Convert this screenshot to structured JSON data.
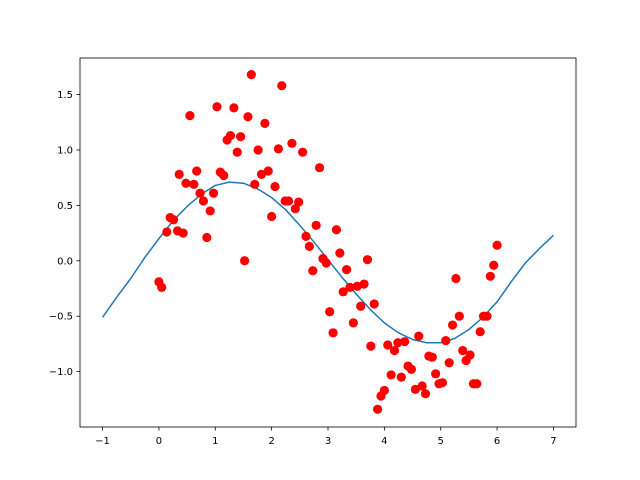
{
  "chart_data": {
    "type": "scatter",
    "title": "",
    "xlabel": "",
    "ylabel": "",
    "xlim": [
      -1.4,
      7.4
    ],
    "ylim": [
      -1.5,
      1.83
    ],
    "xticks": [
      -1,
      0,
      1,
      2,
      3,
      4,
      5,
      6,
      7
    ],
    "xtick_labels": [
      "−1",
      "0",
      "1",
      "2",
      "3",
      "4",
      "5",
      "6",
      "7"
    ],
    "yticks": [
      -1.0,
      -0.5,
      0.0,
      0.5,
      1.0,
      1.5
    ],
    "ytick_labels": [
      "−1.0",
      "−0.5",
      "0.0",
      "0.5",
      "1.0",
      "1.5"
    ],
    "grid": false,
    "colors": {
      "points": "#ff0000",
      "curve": "#1f77b4"
    },
    "series": [
      {
        "type": "scatter",
        "points": [
          {
            "x": 0.0,
            "y": -0.19
          },
          {
            "x": 0.05,
            "y": -0.24
          },
          {
            "x": 0.14,
            "y": 0.26
          },
          {
            "x": 0.2,
            "y": 0.39
          },
          {
            "x": 0.26,
            "y": 0.37
          },
          {
            "x": 0.33,
            "y": 0.27
          },
          {
            "x": 0.36,
            "y": 0.78
          },
          {
            "x": 0.43,
            "y": 0.25
          },
          {
            "x": 0.48,
            "y": 0.7
          },
          {
            "x": 0.55,
            "y": 1.31
          },
          {
            "x": 0.62,
            "y": 0.69
          },
          {
            "x": 0.67,
            "y": 0.81
          },
          {
            "x": 0.73,
            "y": 0.61
          },
          {
            "x": 0.79,
            "y": 0.54
          },
          {
            "x": 0.85,
            "y": 0.21
          },
          {
            "x": 0.91,
            "y": 0.45
          },
          {
            "x": 0.97,
            "y": 0.61
          },
          {
            "x": 1.03,
            "y": 1.39
          },
          {
            "x": 1.09,
            "y": 0.8
          },
          {
            "x": 1.15,
            "y": 0.77
          },
          {
            "x": 1.21,
            "y": 1.09
          },
          {
            "x": 1.27,
            "y": 1.13
          },
          {
            "x": 1.33,
            "y": 1.38
          },
          {
            "x": 1.39,
            "y": 0.98
          },
          {
            "x": 1.45,
            "y": 1.12
          },
          {
            "x": 1.52,
            "y": 0.0
          },
          {
            "x": 1.58,
            "y": 1.3
          },
          {
            "x": 1.64,
            "y": 1.68
          },
          {
            "x": 1.7,
            "y": 0.69
          },
          {
            "x": 1.76,
            "y": 1.0
          },
          {
            "x": 1.82,
            "y": 0.78
          },
          {
            "x": 1.88,
            "y": 1.24
          },
          {
            "x": 1.94,
            "y": 0.81
          },
          {
            "x": 2.0,
            "y": 0.4
          },
          {
            "x": 2.06,
            "y": 0.67
          },
          {
            "x": 2.12,
            "y": 1.01
          },
          {
            "x": 2.18,
            "y": 1.58
          },
          {
            "x": 2.24,
            "y": 0.54
          },
          {
            "x": 2.3,
            "y": 0.54
          },
          {
            "x": 2.36,
            "y": 1.06
          },
          {
            "x": 2.42,
            "y": 0.47
          },
          {
            "x": 2.48,
            "y": 0.53
          },
          {
            "x": 2.55,
            "y": 0.98
          },
          {
            "x": 2.61,
            "y": 0.22
          },
          {
            "x": 2.67,
            "y": 0.13
          },
          {
            "x": 2.73,
            "y": -0.09
          },
          {
            "x": 2.79,
            "y": 0.32
          },
          {
            "x": 2.85,
            "y": 0.84
          },
          {
            "x": 2.91,
            "y": 0.02
          },
          {
            "x": 2.97,
            "y": -0.02
          },
          {
            "x": 3.03,
            "y": -0.46
          },
          {
            "x": 3.09,
            "y": -0.65
          },
          {
            "x": 3.15,
            "y": 0.28
          },
          {
            "x": 3.21,
            "y": 0.07
          },
          {
            "x": 3.27,
            "y": -0.28
          },
          {
            "x": 3.33,
            "y": -0.08
          },
          {
            "x": 3.39,
            "y": -0.24
          },
          {
            "x": 3.45,
            "y": -0.56
          },
          {
            "x": 3.52,
            "y": -0.23
          },
          {
            "x": 3.58,
            "y": -0.41
          },
          {
            "x": 3.64,
            "y": -0.21
          },
          {
            "x": 3.7,
            "y": 0.01
          },
          {
            "x": 3.76,
            "y": -0.77
          },
          {
            "x": 3.82,
            "y": -0.39
          },
          {
            "x": 3.88,
            "y": -1.34
          },
          {
            "x": 3.94,
            "y": -1.22
          },
          {
            "x": 4.0,
            "y": -1.17
          },
          {
            "x": 4.06,
            "y": -0.76
          },
          {
            "x": 4.12,
            "y": -1.03
          },
          {
            "x": 4.18,
            "y": -0.81
          },
          {
            "x": 4.24,
            "y": -0.74
          },
          {
            "x": 4.3,
            "y": -1.05
          },
          {
            "x": 4.36,
            "y": -0.73
          },
          {
            "x": 4.42,
            "y": -0.95
          },
          {
            "x": 4.48,
            "y": -0.98
          },
          {
            "x": 4.55,
            "y": -1.16
          },
          {
            "x": 4.61,
            "y": -0.68
          },
          {
            "x": 4.67,
            "y": -1.13
          },
          {
            "x": 4.73,
            "y": -1.2
          },
          {
            "x": 4.79,
            "y": -0.86
          },
          {
            "x": 4.85,
            "y": -0.87
          },
          {
            "x": 4.91,
            "y": -1.02
          },
          {
            "x": 4.97,
            "y": -1.11
          },
          {
            "x": 5.03,
            "y": -1.1
          },
          {
            "x": 5.09,
            "y": -0.72
          },
          {
            "x": 5.15,
            "y": -0.92
          },
          {
            "x": 5.21,
            "y": -0.58
          },
          {
            "x": 5.27,
            "y": -0.16
          },
          {
            "x": 5.33,
            "y": -0.5
          },
          {
            "x": 5.39,
            "y": -0.81
          },
          {
            "x": 5.45,
            "y": -0.9
          },
          {
            "x": 5.52,
            "y": -0.85
          },
          {
            "x": 5.58,
            "y": -1.11
          },
          {
            "x": 5.64,
            "y": -1.11
          },
          {
            "x": 5.7,
            "y": -0.64
          },
          {
            "x": 5.76,
            "y": -0.5
          },
          {
            "x": 5.82,
            "y": -0.5
          },
          {
            "x": 5.88,
            "y": -0.14
          },
          {
            "x": 5.94,
            "y": -0.04
          },
          {
            "x": 6.0,
            "y": 0.14
          }
        ]
      },
      {
        "type": "line",
        "points": [
          {
            "x": -1.0,
            "y": -0.51
          },
          {
            "x": -0.75,
            "y": -0.33
          },
          {
            "x": -0.5,
            "y": -0.16
          },
          {
            "x": -0.25,
            "y": 0.03
          },
          {
            "x": 0.0,
            "y": 0.2
          },
          {
            "x": 0.25,
            "y": 0.36
          },
          {
            "x": 0.5,
            "y": 0.49
          },
          {
            "x": 0.75,
            "y": 0.6
          },
          {
            "x": 1.0,
            "y": 0.68
          },
          {
            "x": 1.25,
            "y": 0.71
          },
          {
            "x": 1.5,
            "y": 0.7
          },
          {
            "x": 1.75,
            "y": 0.65
          },
          {
            "x": 2.0,
            "y": 0.57
          },
          {
            "x": 2.25,
            "y": 0.46
          },
          {
            "x": 2.5,
            "y": 0.32
          },
          {
            "x": 2.75,
            "y": 0.17
          },
          {
            "x": 3.0,
            "y": 0.01
          },
          {
            "x": 3.25,
            "y": -0.15
          },
          {
            "x": 3.5,
            "y": -0.3
          },
          {
            "x": 3.75,
            "y": -0.44
          },
          {
            "x": 4.0,
            "y": -0.56
          },
          {
            "x": 4.25,
            "y": -0.65
          },
          {
            "x": 4.5,
            "y": -0.71
          },
          {
            "x": 4.75,
            "y": -0.74
          },
          {
            "x": 5.0,
            "y": -0.74
          },
          {
            "x": 5.25,
            "y": -0.7
          },
          {
            "x": 5.5,
            "y": -0.62
          },
          {
            "x": 5.75,
            "y": -0.51
          },
          {
            "x": 6.0,
            "y": -0.37
          },
          {
            "x": 6.25,
            "y": -0.19
          },
          {
            "x": 6.5,
            "y": -0.02
          },
          {
            "x": 6.75,
            "y": 0.11
          },
          {
            "x": 7.0,
            "y": 0.23
          }
        ]
      }
    ]
  }
}
